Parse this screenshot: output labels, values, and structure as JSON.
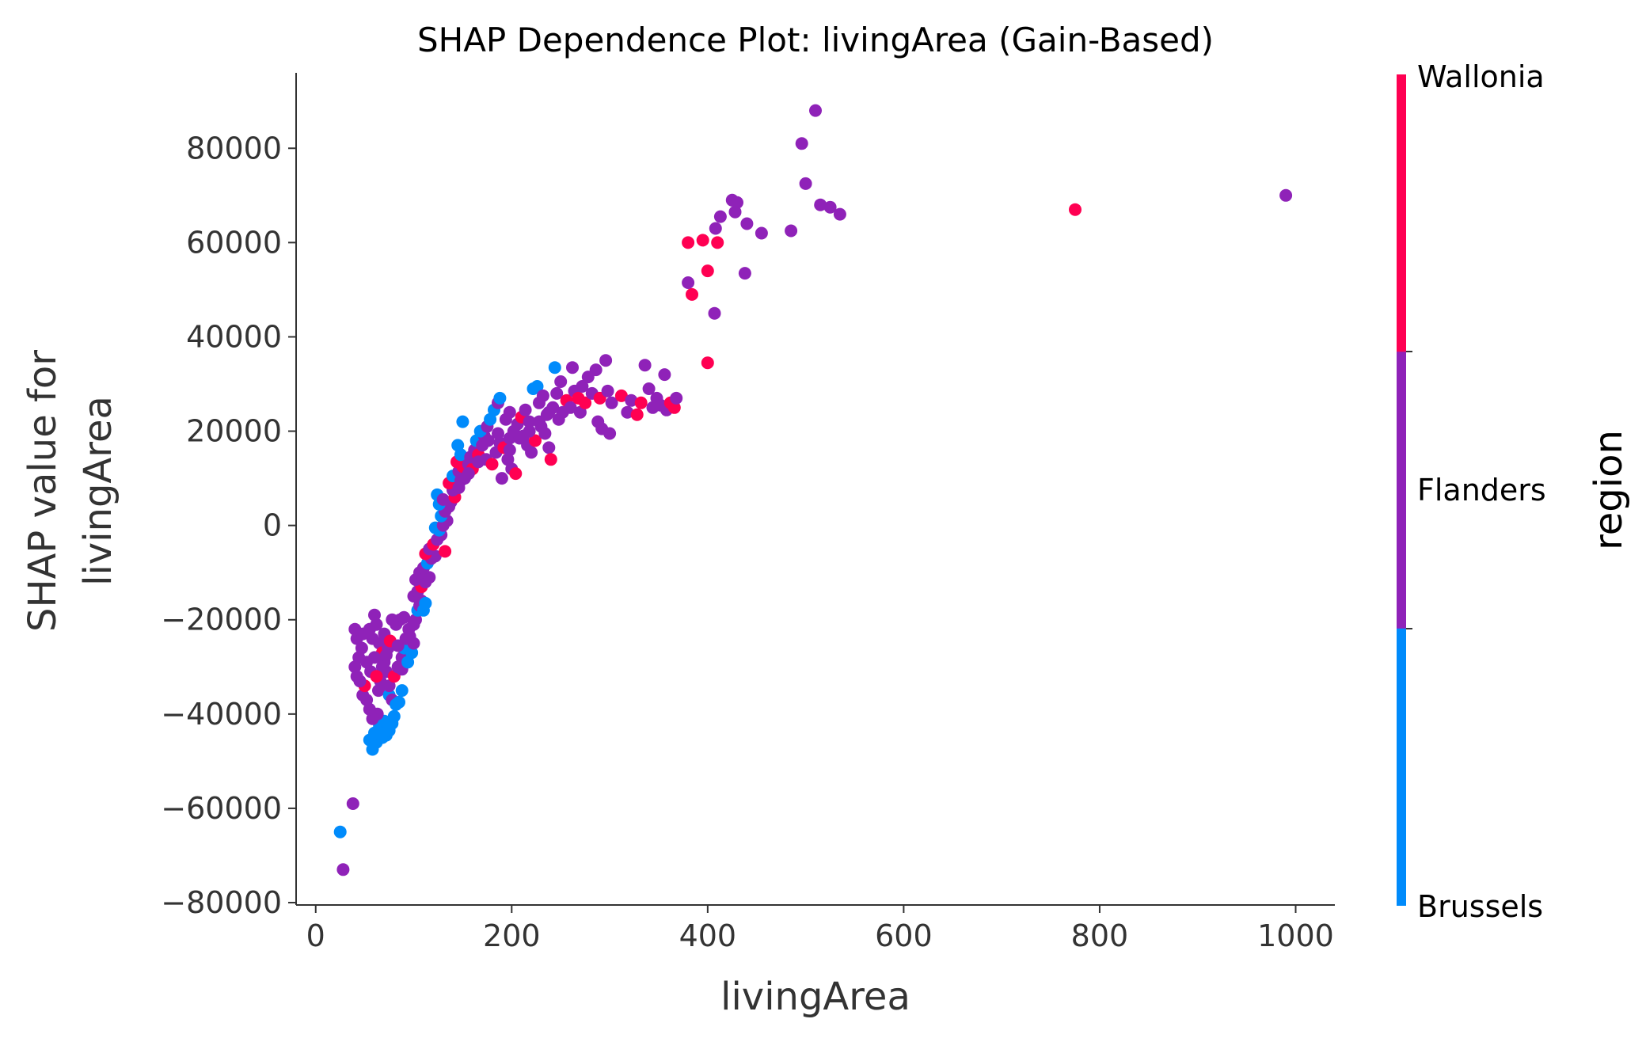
{
  "chart_data": {
    "type": "scatter",
    "title": "SHAP Dependence Plot: livingArea (Gain-Based)",
    "xlabel": "livingArea",
    "ylabel_lines": [
      "SHAP value for",
      "livingArea"
    ],
    "xlim": [
      -20,
      1040
    ],
    "ylim": [
      -80500,
      96000
    ],
    "xticks": [
      0,
      200,
      400,
      600,
      800,
      1000
    ],
    "xtick_labels": [
      "0",
      "200",
      "400",
      "600",
      "800",
      "1000"
    ],
    "yticks": [
      -80000,
      -60000,
      -40000,
      -20000,
      0,
      20000,
      40000,
      60000,
      80000
    ],
    "ytick_labels": [
      "−80000",
      "−60000",
      "−40000",
      "−20000",
      "0",
      "20000",
      "40000",
      "60000",
      "80000"
    ],
    "grid": false,
    "colorbar": {
      "title": "region",
      "labels": [
        "Wallonia",
        "Flanders",
        "Brussels"
      ],
      "colors": {
        "Wallonia": "#ff0052",
        "Flanders": "#8f22b8",
        "Brussels": "#008bfb"
      }
    },
    "points": [
      [
        28,
        -73000,
        "Flanders"
      ],
      [
        25,
        -65000,
        "Brussels"
      ],
      [
        38,
        -59000,
        "Flanders"
      ],
      [
        55,
        -45500,
        "Brussels"
      ],
      [
        58,
        -47500,
        "Brussels"
      ],
      [
        62,
        -46000,
        "Brussels"
      ],
      [
        60,
        -44000,
        "Brussels"
      ],
      [
        68,
        -45000,
        "Brussels"
      ],
      [
        72,
        -44500,
        "Brussels"
      ],
      [
        75,
        -43500,
        "Brussels"
      ],
      [
        65,
        -42500,
        "Brussels"
      ],
      [
        70,
        -41500,
        "Brussels"
      ],
      [
        78,
        -42000,
        "Brussels"
      ],
      [
        80,
        -40500,
        "Brussels"
      ],
      [
        63,
        -40000,
        "Flanders"
      ],
      [
        58,
        -41000,
        "Flanders"
      ],
      [
        55,
        -39000,
        "Flanders"
      ],
      [
        52,
        -37000,
        "Flanders"
      ],
      [
        48,
        -36000,
        "Flanders"
      ],
      [
        50,
        -34000,
        "Wallonia"
      ],
      [
        45,
        -33000,
        "Flanders"
      ],
      [
        42,
        -32000,
        "Flanders"
      ],
      [
        40,
        -30000,
        "Flanders"
      ],
      [
        44,
        -28000,
        "Flanders"
      ],
      [
        47,
        -26000,
        "Flanders"
      ],
      [
        42,
        -24000,
        "Flanders"
      ],
      [
        40,
        -22000,
        "Flanders"
      ],
      [
        48,
        -23000,
        "Flanders"
      ],
      [
        55,
        -22000,
        "Flanders"
      ],
      [
        60,
        -19000,
        "Flanders"
      ],
      [
        62,
        -21000,
        "Flanders"
      ],
      [
        58,
        -24000,
        "Flanders"
      ],
      [
        65,
        -25000,
        "Flanders"
      ],
      [
        68,
        -27000,
        "Wallonia"
      ],
      [
        70,
        -29000,
        "Flanders"
      ],
      [
        72,
        -31000,
        "Flanders"
      ],
      [
        66,
        -33000,
        "Flanders"
      ],
      [
        64,
        -35000,
        "Flanders"
      ],
      [
        75,
        -36000,
        "Brussels"
      ],
      [
        78,
        -37000,
        "Flanders"
      ],
      [
        82,
        -38000,
        "Brussels"
      ],
      [
        85,
        -37500,
        "Brussels"
      ],
      [
        88,
        -35000,
        "Brussels"
      ],
      [
        75,
        -34000,
        "Flanders"
      ],
      [
        80,
        -32000,
        "Wallonia"
      ],
      [
        84,
        -30000,
        "Flanders"
      ],
      [
        88,
        -28000,
        "Flanders"
      ],
      [
        90,
        -26000,
        "Brussels"
      ],
      [
        92,
        -24000,
        "Flanders"
      ],
      [
        95,
        -22000,
        "Flanders"
      ],
      [
        78,
        -20000,
        "Flanders"
      ],
      [
        82,
        -21000,
        "Flanders"
      ],
      [
        86,
        -20000,
        "Flanders"
      ],
      [
        90,
        -19500,
        "Flanders"
      ],
      [
        70,
        -23000,
        "Flanders"
      ],
      [
        74,
        -26000,
        "Flanders"
      ],
      [
        68,
        -30000,
        "Flanders"
      ],
      [
        60,
        -28000,
        "Flanders"
      ],
      [
        56,
        -31000,
        "Flanders"
      ],
      [
        52,
        -29000,
        "Flanders"
      ],
      [
        62,
        -32000,
        "Wallonia"
      ],
      [
        72,
        -27500,
        "Flanders"
      ],
      [
        76,
        -24500,
        "Wallonia"
      ],
      [
        84,
        -25500,
        "Flanders"
      ],
      [
        88,
        -30500,
        "Flanders"
      ],
      [
        94,
        -29000,
        "Brussels"
      ],
      [
        98,
        -27000,
        "Brussels"
      ],
      [
        100,
        -25000,
        "Flanders"
      ],
      [
        96,
        -23500,
        "Flanders"
      ],
      [
        100,
        -21000,
        "Flanders"
      ],
      [
        102,
        -20000,
        "Flanders"
      ],
      [
        104,
        -18000,
        "Brussels"
      ],
      [
        106,
        -17000,
        "Flanders"
      ],
      [
        108,
        -16000,
        "Flanders"
      ],
      [
        110,
        -18000,
        "Brussels"
      ],
      [
        112,
        -16500,
        "Brussels"
      ],
      [
        100,
        -15000,
        "Flanders"
      ],
      [
        104,
        -14000,
        "Flanders"
      ],
      [
        108,
        -13000,
        "Wallonia"
      ],
      [
        112,
        -12000,
        "Flanders"
      ],
      [
        116,
        -11000,
        "Flanders"
      ],
      [
        102,
        -11500,
        "Flanders"
      ],
      [
        106,
        -10000,
        "Flanders"
      ],
      [
        110,
        -9000,
        "Flanders"
      ],
      [
        114,
        -8000,
        "Brussels"
      ],
      [
        118,
        -7000,
        "Flanders"
      ],
      [
        122,
        -6500,
        "Flanders"
      ],
      [
        112,
        -6000,
        "Wallonia"
      ],
      [
        116,
        -5000,
        "Flanders"
      ],
      [
        120,
        -4000,
        "Wallonia"
      ],
      [
        124,
        -3000,
        "Flanders"
      ],
      [
        128,
        -2000,
        "Flanders"
      ],
      [
        132,
        -5500,
        "Wallonia"
      ],
      [
        126,
        -1000,
        "Brussels"
      ],
      [
        122,
        -500,
        "Brussels"
      ],
      [
        130,
        0,
        "Flanders"
      ],
      [
        134,
        1000,
        "Flanders"
      ],
      [
        128,
        2000,
        "Brussels"
      ],
      [
        132,
        3000,
        "Flanders"
      ],
      [
        136,
        4000,
        "Flanders"
      ],
      [
        126,
        4500,
        "Brussels"
      ],
      [
        124,
        6500,
        "Brussels"
      ],
      [
        130,
        5500,
        "Flanders"
      ],
      [
        138,
        5000,
        "Flanders"
      ],
      [
        142,
        6000,
        "Wallonia"
      ],
      [
        140,
        7500,
        "Flanders"
      ],
      [
        144,
        8500,
        "Flanders"
      ],
      [
        136,
        9000,
        "Wallonia"
      ],
      [
        140,
        10500,
        "Brussels"
      ],
      [
        148,
        9500,
        "Flanders"
      ],
      [
        152,
        10000,
        "Flanders"
      ],
      [
        146,
        11500,
        "Flanders"
      ],
      [
        150,
        12500,
        "Wallonia"
      ],
      [
        144,
        13500,
        "Wallonia"
      ],
      [
        148,
        15000,
        "Brussels"
      ],
      [
        145,
        17000,
        "Brussels"
      ],
      [
        150,
        22000,
        "Brussels"
      ],
      [
        156,
        13000,
        "Flanders"
      ],
      [
        160,
        12000,
        "Wallonia"
      ],
      [
        158,
        14500,
        "Flanders"
      ],
      [
        162,
        16000,
        "Flanders"
      ],
      [
        166,
        15000,
        "Wallonia"
      ],
      [
        164,
        18000,
        "Brussels"
      ],
      [
        170,
        17000,
        "Flanders"
      ],
      [
        172,
        19000,
        "Flanders"
      ],
      [
        168,
        20000,
        "Brussels"
      ],
      [
        175,
        21000,
        "Flanders"
      ],
      [
        178,
        22500,
        "Brussels"
      ],
      [
        182,
        24500,
        "Brussels"
      ],
      [
        186,
        26000,
        "Flanders"
      ],
      [
        188,
        27000,
        "Brussels"
      ],
      [
        174,
        14000,
        "Flanders"
      ],
      [
        180,
        13000,
        "Wallonia"
      ],
      [
        184,
        15500,
        "Flanders"
      ],
      [
        188,
        17500,
        "Flanders"
      ],
      [
        192,
        16500,
        "Wallonia"
      ],
      [
        190,
        10000,
        "Flanders"
      ],
      [
        196,
        14000,
        "Flanders"
      ],
      [
        200,
        12000,
        "Flanders"
      ],
      [
        204,
        11000,
        "Wallonia"
      ],
      [
        198,
        18500,
        "Flanders"
      ],
      [
        202,
        20000,
        "Flanders"
      ],
      [
        206,
        21500,
        "Flanders"
      ],
      [
        194,
        22500,
        "Flanders"
      ],
      [
        198,
        24000,
        "Flanders"
      ],
      [
        210,
        23000,
        "Wallonia"
      ],
      [
        214,
        24500,
        "Flanders"
      ],
      [
        218,
        22000,
        "Flanders"
      ],
      [
        212,
        19000,
        "Flanders"
      ],
      [
        216,
        17000,
        "Flanders"
      ],
      [
        220,
        15500,
        "Flanders"
      ],
      [
        224,
        18000,
        "Wallonia"
      ],
      [
        222,
        29000,
        "Brussels"
      ],
      [
        226,
        29500,
        "Brussels"
      ],
      [
        228,
        26000,
        "Flanders"
      ],
      [
        232,
        27500,
        "Flanders"
      ],
      [
        230,
        21000,
        "Flanders"
      ],
      [
        234,
        19500,
        "Flanders"
      ],
      [
        238,
        16500,
        "Flanders"
      ],
      [
        240,
        14000,
        "Wallonia"
      ],
      [
        236,
        23500,
        "Flanders"
      ],
      [
        242,
        25000,
        "Flanders"
      ],
      [
        244,
        33500,
        "Brussels"
      ],
      [
        246,
        28000,
        "Flanders"
      ],
      [
        250,
        30500,
        "Flanders"
      ],
      [
        248,
        22500,
        "Flanders"
      ],
      [
        252,
        24000,
        "Flanders"
      ],
      [
        256,
        26500,
        "Wallonia"
      ],
      [
        260,
        25000,
        "Flanders"
      ],
      [
        262,
        33500,
        "Flanders"
      ],
      [
        264,
        28500,
        "Flanders"
      ],
      [
        268,
        27000,
        "Wallonia"
      ],
      [
        272,
        29500,
        "Flanders"
      ],
      [
        270,
        24000,
        "Flanders"
      ],
      [
        275,
        26000,
        "Wallonia"
      ],
      [
        278,
        31500,
        "Flanders"
      ],
      [
        282,
        28000,
        "Flanders"
      ],
      [
        286,
        33000,
        "Flanders"
      ],
      [
        290,
        27000,
        "Wallonia"
      ],
      [
        288,
        22000,
        "Flanders"
      ],
      [
        292,
        20500,
        "Flanders"
      ],
      [
        296,
        35000,
        "Flanders"
      ],
      [
        298,
        28500,
        "Flanders"
      ],
      [
        300,
        19500,
        "Flanders"
      ],
      [
        302,
        26000,
        "Flanders"
      ],
      [
        312,
        27500,
        "Wallonia"
      ],
      [
        318,
        24000,
        "Flanders"
      ],
      [
        322,
        26500,
        "Flanders"
      ],
      [
        328,
        23500,
        "Wallonia"
      ],
      [
        332,
        26000,
        "Wallonia"
      ],
      [
        336,
        34000,
        "Flanders"
      ],
      [
        340,
        29000,
        "Flanders"
      ],
      [
        344,
        25000,
        "Flanders"
      ],
      [
        348,
        27000,
        "Flanders"
      ],
      [
        352,
        25500,
        "Flanders"
      ],
      [
        356,
        32000,
        "Flanders"
      ],
      [
        358,
        24500,
        "Flanders"
      ],
      [
        362,
        26000,
        "Wallonia"
      ],
      [
        366,
        25000,
        "Wallonia"
      ],
      [
        368,
        27000,
        "Flanders"
      ],
      [
        198,
        16000,
        "Flanders"
      ],
      [
        208,
        18500,
        "Flanders"
      ],
      [
        218,
        20000,
        "Flanders"
      ],
      [
        228,
        22000,
        "Flanders"
      ],
      [
        238,
        24000,
        "Flanders"
      ],
      [
        186,
        19500,
        "Flanders"
      ],
      [
        176,
        18000,
        "Flanders"
      ],
      [
        166,
        13500,
        "Flanders"
      ],
      [
        156,
        11000,
        "Flanders"
      ],
      [
        146,
        8000,
        "Flanders"
      ],
      [
        380,
        60000,
        "Wallonia"
      ],
      [
        384,
        49000,
        "Wallonia"
      ],
      [
        380,
        51500,
        "Flanders"
      ],
      [
        395,
        60500,
        "Wallonia"
      ],
      [
        400,
        54000,
        "Wallonia"
      ],
      [
        400,
        34500,
        "Wallonia"
      ],
      [
        407,
        45000,
        "Flanders"
      ],
      [
        408,
        63000,
        "Flanders"
      ],
      [
        410,
        60000,
        "Wallonia"
      ],
      [
        413,
        65500,
        "Flanders"
      ],
      [
        425,
        69000,
        "Flanders"
      ],
      [
        428,
        66500,
        "Flanders"
      ],
      [
        430,
        68500,
        "Flanders"
      ],
      [
        438,
        53500,
        "Flanders"
      ],
      [
        440,
        64000,
        "Flanders"
      ],
      [
        455,
        62000,
        "Flanders"
      ],
      [
        485,
        62500,
        "Flanders"
      ],
      [
        496,
        81000,
        "Flanders"
      ],
      [
        500,
        72500,
        "Flanders"
      ],
      [
        510,
        88000,
        "Flanders"
      ],
      [
        515,
        68000,
        "Flanders"
      ],
      [
        525,
        67500,
        "Flanders"
      ],
      [
        535,
        66000,
        "Flanders"
      ],
      [
        775,
        67000,
        "Wallonia"
      ],
      [
        990,
        70000,
        "Flanders"
      ]
    ]
  }
}
